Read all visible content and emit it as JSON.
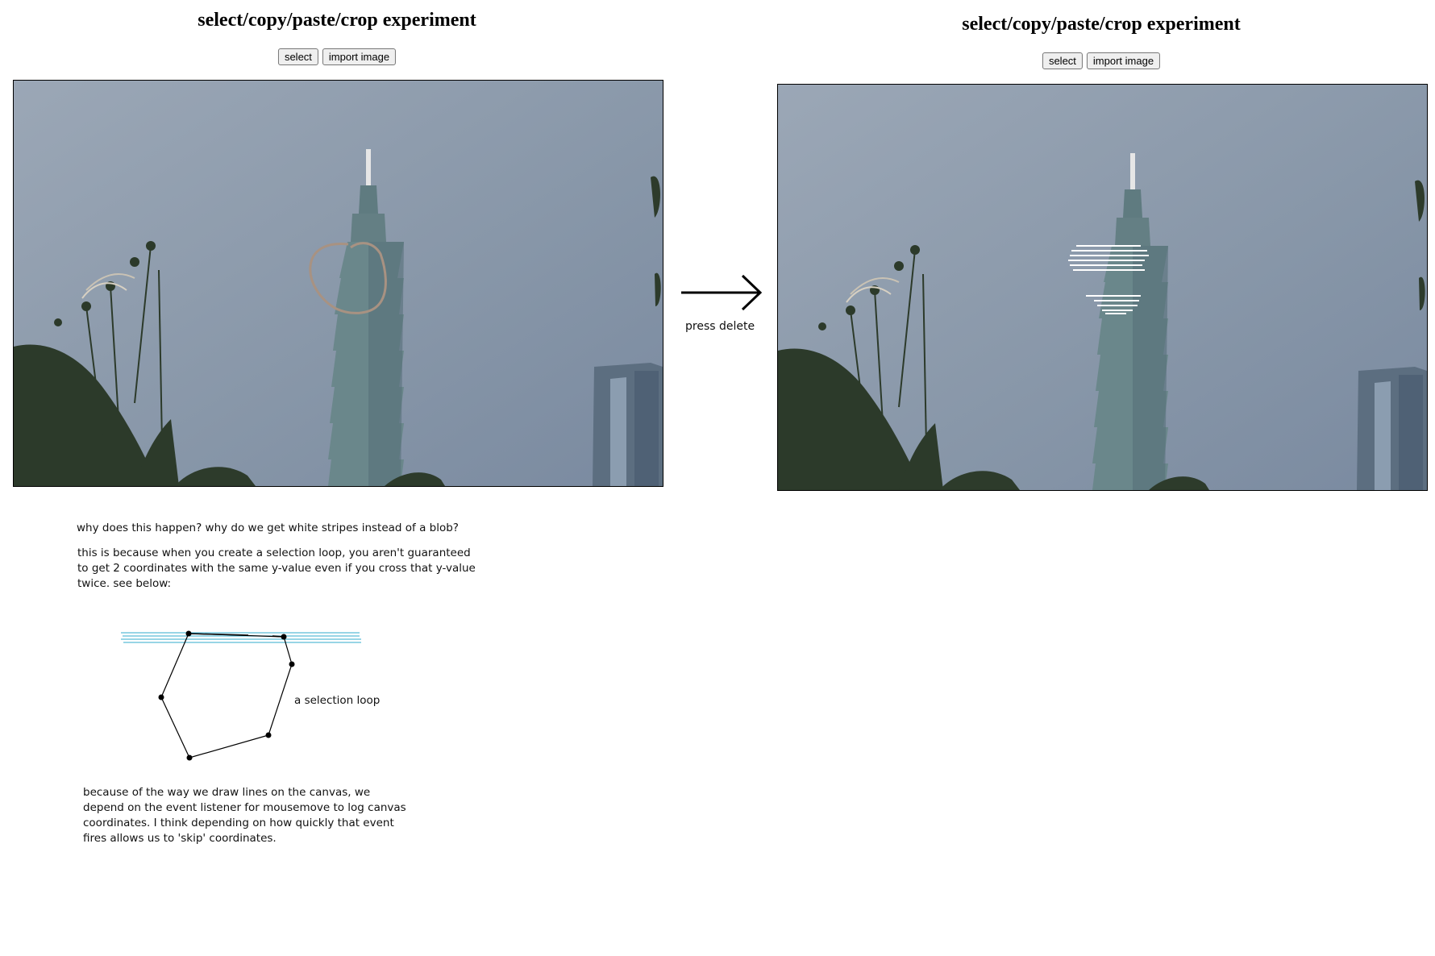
{
  "left_panel": {
    "title": "select/copy/paste/crop experiment",
    "buttons": {
      "select": "select",
      "import": "import image"
    }
  },
  "right_panel": {
    "title": "select/copy/paste/crop experiment",
    "buttons": {
      "select": "select",
      "import": "import image"
    }
  },
  "arrow": {
    "label": "press delete"
  },
  "explanation": {
    "question": "why does this happen? why do we get white stripes instead of a blob?",
    "answer": "this is because when you create a selection loop, you aren't guaranteed to get 2 coordinates with the same y-value even if you cross that y-value twice. see below:",
    "diagram_label": "a selection loop",
    "followup": "because of the way we draw lines on the canvas, we depend on the event listener for mousemove to log canvas coordinates. I think depending on how quickly that event fires allows us to 'skip' coordinates."
  },
  "colors": {
    "sky_top": "#8595a8",
    "sky_bottom": "#9aa6b0",
    "tower": "#6e8c8e",
    "selection_stroke": "#a89282",
    "stripe": "#ffffff",
    "diagram_lines": "#5bbcd8"
  }
}
